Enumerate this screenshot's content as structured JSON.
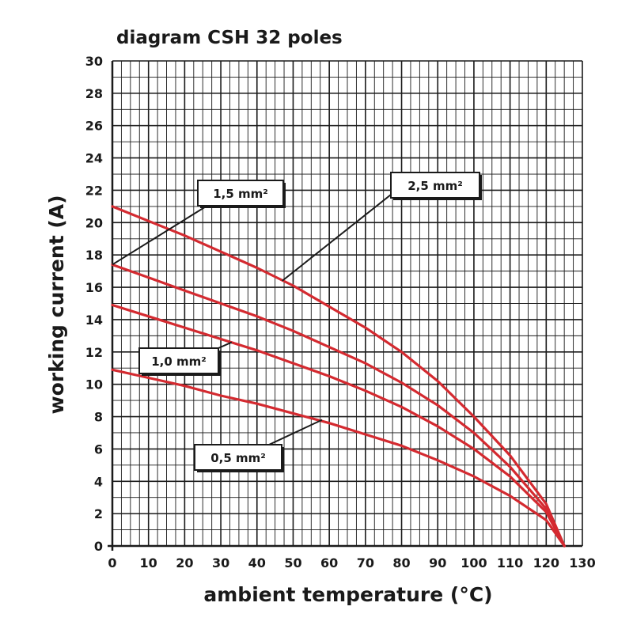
{
  "chart_data": {
    "type": "line",
    "title": "diagram CSH 32 poles",
    "xlabel": "ambient temperature (°C)",
    "ylabel": "working current (A)",
    "xlim": [
      0,
      130
    ],
    "ylim": [
      0,
      30
    ],
    "xticks": [
      0,
      10,
      20,
      30,
      40,
      50,
      60,
      70,
      80,
      90,
      100,
      110,
      120,
      130
    ],
    "yticks": [
      0,
      2,
      4,
      6,
      8,
      10,
      12,
      14,
      16,
      18,
      20,
      22,
      24,
      26,
      28,
      30
    ],
    "grid": true,
    "line_color": "#d42a30",
    "grid_color": "#1a1a1a",
    "series": [
      {
        "name": "2,5 mm²",
        "x": [
          0,
          10,
          20,
          30,
          40,
          50,
          60,
          70,
          80,
          90,
          100,
          110,
          120,
          125
        ],
        "y": [
          21.0,
          20.1,
          19.2,
          18.2,
          17.2,
          16.1,
          14.8,
          13.5,
          12.0,
          10.2,
          8.0,
          5.6,
          2.6,
          0
        ]
      },
      {
        "name": "1,5 mm²",
        "x": [
          0,
          10,
          20,
          30,
          40,
          50,
          60,
          70,
          80,
          90,
          100,
          110,
          120,
          125
        ],
        "y": [
          17.4,
          16.6,
          15.8,
          15.0,
          14.2,
          13.3,
          12.3,
          11.3,
          10.1,
          8.7,
          7.0,
          4.9,
          2.3,
          0
        ]
      },
      {
        "name": "1,0 mm²",
        "x": [
          0,
          10,
          20,
          30,
          40,
          50,
          60,
          70,
          80,
          90,
          100,
          110,
          120,
          125
        ],
        "y": [
          14.9,
          14.2,
          13.5,
          12.8,
          12.1,
          11.3,
          10.5,
          9.6,
          8.6,
          7.4,
          6.0,
          4.3,
          2.1,
          0
        ]
      },
      {
        "name": "0,5 mm²",
        "x": [
          0,
          10,
          20,
          30,
          40,
          50,
          60,
          70,
          80,
          90,
          100,
          110,
          120,
          125
        ],
        "y": [
          10.9,
          10.4,
          9.9,
          9.3,
          8.8,
          8.2,
          7.6,
          6.9,
          6.2,
          5.3,
          4.3,
          3.1,
          1.6,
          0
        ]
      }
    ],
    "callouts": [
      {
        "text": "1,5 mm²",
        "series": "1,5 mm²",
        "point": [
          0,
          17.4
        ]
      },
      {
        "text": "2,5 mm²",
        "series": "2,5 mm²",
        "point": [
          47,
          16.4
        ]
      },
      {
        "text": "1,0 mm²",
        "series": "1,0 mm²",
        "point": [
          33,
          12.6
        ]
      },
      {
        "text": "0,5 mm²",
        "series": "0,5 mm²",
        "point": [
          58,
          7.8
        ]
      }
    ]
  }
}
